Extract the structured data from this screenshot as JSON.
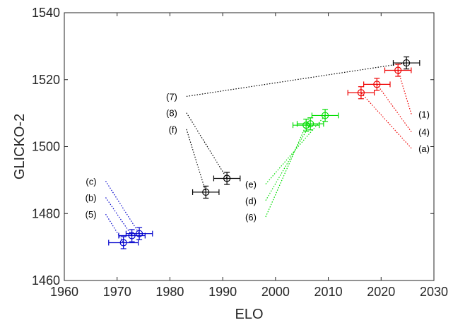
{
  "chart_data": {
    "type": "scatter",
    "xlabel": "ELO",
    "ylabel": "GLICKO-2",
    "xlim": [
      1960,
      2030
    ],
    "ylim": [
      1460,
      1540
    ],
    "xticks": [
      1960,
      1970,
      1980,
      1990,
      2000,
      2010,
      2020,
      2030
    ],
    "yticks": [
      1460,
      1480,
      1500,
      1520,
      1540
    ],
    "grid": false,
    "legend": "none",
    "colors": {
      "blue": "#0000cc",
      "black": "#000000",
      "green": "#00dd00",
      "red": "#ee0000"
    },
    "points": [
      {
        "id": "blue1",
        "x": 1971.2,
        "y": 1471.3,
        "xerr": 2.8,
        "yerr": 1.8,
        "color": "blue"
      },
      {
        "id": "blue2",
        "x": 1972.8,
        "y": 1473.4,
        "xerr": 2.5,
        "yerr": 1.8,
        "color": "blue"
      },
      {
        "id": "blue3",
        "x": 1974.2,
        "y": 1474.0,
        "xerr": 2.5,
        "yerr": 1.8,
        "color": "blue"
      },
      {
        "id": "black1",
        "x": 1986.8,
        "y": 1486.4,
        "xerr": 2.5,
        "yerr": 1.8,
        "color": "black"
      },
      {
        "id": "black2",
        "x": 1990.8,
        "y": 1490.5,
        "xerr": 2.5,
        "yerr": 1.8,
        "color": "black"
      },
      {
        "id": "black3",
        "x": 2024.8,
        "y": 1525.0,
        "xerr": 2.5,
        "yerr": 1.8,
        "color": "black"
      },
      {
        "id": "green1",
        "x": 2005.8,
        "y": 1506.4,
        "xerr": 2.5,
        "yerr": 1.8,
        "color": "green"
      },
      {
        "id": "green2",
        "x": 2006.6,
        "y": 1506.8,
        "xerr": 2.5,
        "yerr": 1.8,
        "color": "green"
      },
      {
        "id": "green3",
        "x": 2009.4,
        "y": 1509.3,
        "xerr": 2.5,
        "yerr": 1.8,
        "color": "green"
      },
      {
        "id": "red1",
        "x": 2016.2,
        "y": 1516.1,
        "xerr": 2.5,
        "yerr": 1.8,
        "color": "red"
      },
      {
        "id": "red2",
        "x": 2019.2,
        "y": 1518.6,
        "xerr": 2.5,
        "yerr": 1.8,
        "color": "red"
      },
      {
        "id": "red3",
        "x": 2023.2,
        "y": 1522.8,
        "xerr": 2.5,
        "yerr": 1.8,
        "color": "red"
      }
    ],
    "annotations": [
      {
        "label": "(c)",
        "x": 1966.5,
        "y": 1489.7,
        "target": "blue3",
        "color": "blue"
      },
      {
        "label": "(b)",
        "x": 1966.5,
        "y": 1484.8,
        "target": "blue2",
        "color": "blue"
      },
      {
        "label": "(5)",
        "x": 1966.5,
        "y": 1479.8,
        "target": "blue1",
        "color": "blue"
      },
      {
        "label": "(7)",
        "x": 1981.8,
        "y": 1515.0,
        "target": "black3",
        "color": "black"
      },
      {
        "label": "(8)",
        "x": 1981.8,
        "y": 1510.1,
        "target": "black2",
        "color": "black"
      },
      {
        "label": "(f)",
        "x": 1981.8,
        "y": 1505.2,
        "target": "black1",
        "color": "black"
      },
      {
        "label": "(e)",
        "x": 1996.8,
        "y": 1488.8,
        "target": "green3",
        "color": "green"
      },
      {
        "label": "(d)",
        "x": 1996.8,
        "y": 1483.9,
        "target": "green2",
        "color": "green"
      },
      {
        "label": "(6)",
        "x": 1996.8,
        "y": 1479.0,
        "target": "green1",
        "color": "green"
      },
      {
        "label": "(1)",
        "x": 2026.8,
        "y": 1509.7,
        "target": "red3",
        "color": "red"
      },
      {
        "label": "(4)",
        "x": 2026.8,
        "y": 1504.4,
        "target": "red2",
        "color": "red"
      },
      {
        "label": "(a)",
        "x": 2026.8,
        "y": 1499.5,
        "target": "red1",
        "color": "red"
      }
    ]
  }
}
